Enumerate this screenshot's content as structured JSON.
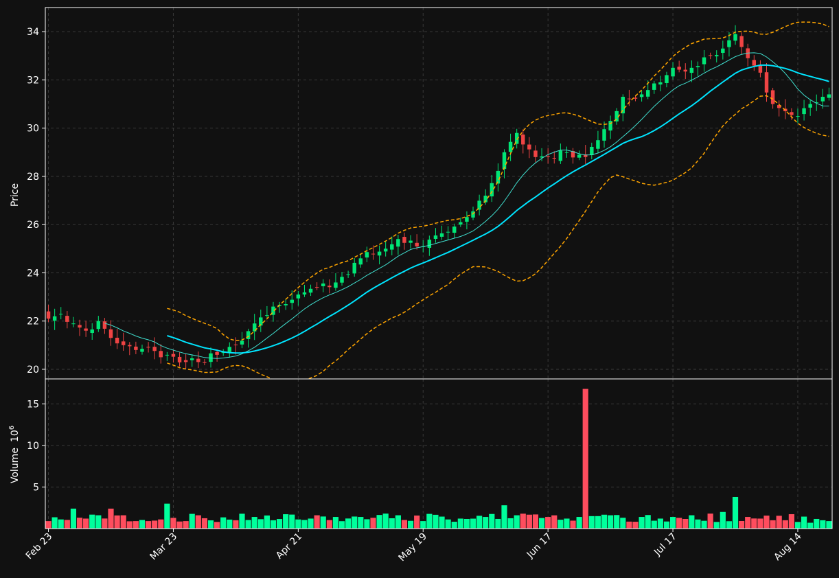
{
  "chart_data": {
    "type": "candlestick",
    "background": "#111111",
    "colors": {
      "up": "#00e676",
      "down": "#ef4444",
      "volume_up": "#00ff9c",
      "volume_down": "#ff4d5e",
      "ma_fast": "#40e0d0",
      "ma_slow": "#00e5ff",
      "bands": "#ffa500",
      "grid": "#3a3a3a",
      "frame": "#ffffff"
    },
    "price_panel": {
      "ylabel": "Price",
      "yticks": [
        20,
        22,
        24,
        26,
        28,
        30,
        32,
        34
      ],
      "ylim": [
        19.6,
        35.0
      ]
    },
    "volume_panel": {
      "ylabel": "Volume",
      "ylabel_exp": "10",
      "ylabel_sup": "6",
      "yticks": [
        5,
        10,
        15
      ],
      "ylim": [
        0,
        18
      ]
    },
    "xticks": [
      {
        "label": "Feb 23",
        "index": 0
      },
      {
        "label": "Mar 23",
        "index": 20
      },
      {
        "label": "Apr 21",
        "index": 40
      },
      {
        "label": "May 19",
        "index": 60
      },
      {
        "label": "Jun 17",
        "index": 80
      },
      {
        "label": "Jul 17",
        "index": 100
      },
      {
        "label": "Aug 14",
        "index": 120
      }
    ],
    "anchors": [
      [
        0,
        22.1,
        0.9
      ],
      [
        2,
        22.3,
        1.1
      ],
      [
        4,
        21.9,
        2.4
      ],
      [
        6,
        21.6,
        1.2
      ],
      [
        8,
        22.0,
        1.6
      ],
      [
        10,
        21.3,
        2.4
      ],
      [
        12,
        21.0,
        1.6
      ],
      [
        14,
        20.8,
        0.9
      ],
      [
        16,
        20.9,
        0.9
      ],
      [
        18,
        20.5,
        1.1
      ],
      [
        19,
        20.6,
        3.0
      ],
      [
        22,
        20.3,
        0.9
      ],
      [
        24,
        20.3,
        1.6
      ],
      [
        27,
        20.6,
        0.8
      ],
      [
        30,
        21.0,
        1.0
      ],
      [
        33,
        21.9,
        1.4
      ],
      [
        36,
        22.6,
        1.0
      ],
      [
        40,
        23.1,
        1.1
      ],
      [
        43,
        23.4,
        1.6
      ],
      [
        46,
        23.6,
        1.4
      ],
      [
        50,
        24.6,
        1.4
      ],
      [
        54,
        25.0,
        1.8
      ],
      [
        56,
        25.4,
        1.6
      ],
      [
        60,
        25.1,
        0.9
      ],
      [
        64,
        25.7,
        1.1
      ],
      [
        66,
        26.1,
        1.2
      ],
      [
        70,
        27.2,
        1.4
      ],
      [
        73,
        29.0,
        2.8
      ],
      [
        75,
        29.8,
        1.6
      ],
      [
        78,
        28.8,
        1.7
      ],
      [
        80,
        28.8,
        1.4
      ],
      [
        83,
        29.0,
        1.2
      ],
      [
        85,
        28.9,
        1.4
      ],
      [
        86,
        28.8,
        16.8
      ],
      [
        88,
        29.5,
        1.5
      ],
      [
        90,
        30.3,
        1.6
      ],
      [
        92,
        31.3,
        1.3
      ],
      [
        95,
        31.4,
        1.4
      ],
      [
        98,
        31.9,
        1.2
      ],
      [
        100,
        32.5,
        1.4
      ],
      [
        103,
        32.5,
        1.6
      ],
      [
        106,
        33.0,
        1.8
      ],
      [
        108,
        33.3,
        2.0
      ],
      [
        110,
        33.9,
        3.8
      ],
      [
        112,
        32.9,
        1.4
      ],
      [
        114,
        32.3,
        1.2
      ],
      [
        116,
        31.0,
        1.0
      ],
      [
        118,
        30.7,
        1.0
      ],
      [
        120,
        30.5,
        0.8
      ],
      [
        122,
        31.0,
        0.7
      ],
      [
        124,
        31.3,
        1.0
      ],
      [
        125,
        31.4,
        0.9
      ]
    ],
    "count": 126
  }
}
